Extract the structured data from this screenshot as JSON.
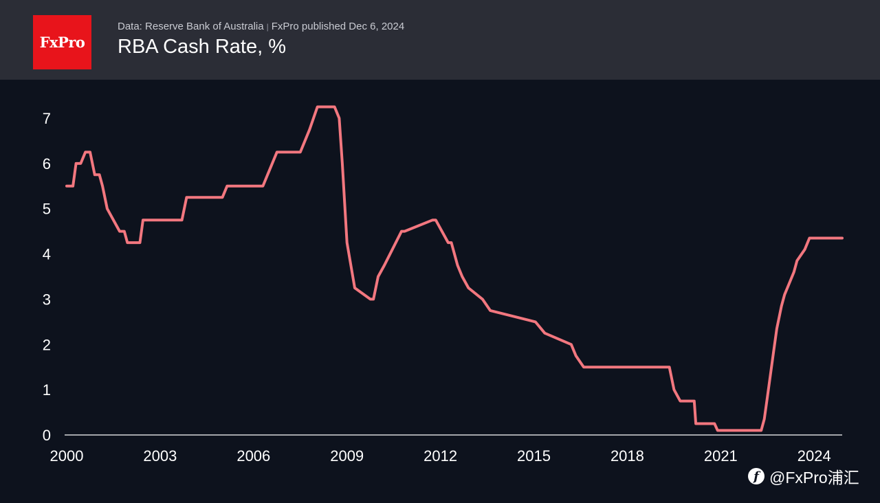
{
  "header": {
    "logo_text": "FxPro",
    "source": "Data: Reserve Bank of Australia",
    "separator": "|",
    "published": "FxPro published Dec 6, 2024",
    "title": "RBA Cash Rate, %"
  },
  "watermark": {
    "icon": "f",
    "text": "@FxPro浦汇"
  },
  "colors": {
    "background": "#0d121d",
    "header": "#2b2d36",
    "line": "#f2777f",
    "axis": "#ffffff",
    "logo": "#e8141b"
  },
  "chart_data": {
    "type": "line",
    "title": "RBA Cash Rate, %",
    "xlabel": "",
    "ylabel": "",
    "xlim": [
      2000.0,
      2024.9
    ],
    "ylim": [
      0,
      7.25
    ],
    "x_ticks": [
      2000,
      2003,
      2006,
      2009,
      2012,
      2015,
      2018,
      2021,
      2024
    ],
    "x_tick_labels": [
      "2000",
      "2003",
      "2006",
      "2009",
      "2012",
      "2015",
      "2018",
      "2021",
      "2024"
    ],
    "y_ticks": [
      0,
      1,
      2,
      3,
      4,
      5,
      6,
      7
    ],
    "y_tick_labels": [
      "0",
      "1",
      "2",
      "3",
      "4",
      "5",
      "6",
      "7"
    ],
    "grid": false,
    "series": [
      {
        "x": [
          2000.0,
          2000.2,
          2000.3,
          2000.45,
          2000.6,
          2000.75,
          2000.9,
          2001.05,
          2001.15,
          2001.3,
          2001.7,
          2001.85,
          2001.95,
          2002.35,
          2002.45,
          2003.7,
          2003.85,
          2005.0,
          2005.15,
          2006.3,
          2006.45,
          2006.6,
          2006.75,
          2007.5,
          2007.65,
          2007.8,
          2008.05,
          2008.6,
          2008.75,
          2008.85,
          2009.0,
          2009.25,
          2009.75,
          2009.85,
          2010.0,
          2010.2,
          2010.75,
          2010.85,
          2011.75,
          2011.85,
          2012.25,
          2012.35,
          2012.55,
          2012.7,
          2012.9,
          2013.35,
          2013.6,
          2015.05,
          2015.35,
          2016.2,
          2016.35,
          2016.6,
          2019.35,
          2019.5,
          2019.7,
          2020.15,
          2020.2,
          2020.8,
          2020.9,
          2022.3,
          2022.4,
          2022.5,
          2022.6,
          2022.7,
          2022.8,
          2022.95,
          2023.05,
          2023.2,
          2023.35,
          2023.45,
          2023.7,
          2023.85,
          2024.9
        ],
        "y": [
          5.5,
          5.5,
          6.0,
          6.0,
          6.25,
          6.25,
          5.75,
          5.75,
          5.5,
          5.0,
          4.5,
          4.5,
          4.25,
          4.25,
          4.75,
          4.75,
          5.25,
          5.25,
          5.5,
          5.5,
          5.75,
          6.0,
          6.25,
          6.25,
          6.5,
          6.75,
          7.25,
          7.25,
          7.0,
          6.0,
          4.25,
          3.25,
          3.0,
          3.0,
          3.5,
          3.75,
          4.5,
          4.5,
          4.75,
          4.75,
          4.25,
          4.25,
          3.75,
          3.5,
          3.25,
          3.0,
          2.75,
          2.5,
          2.25,
          2.0,
          1.75,
          1.5,
          1.5,
          1.0,
          0.75,
          0.75,
          0.25,
          0.25,
          0.1,
          0.1,
          0.35,
          0.85,
          1.35,
          1.85,
          2.35,
          2.85,
          3.1,
          3.35,
          3.6,
          3.85,
          4.1,
          4.35,
          4.35
        ]
      }
    ]
  }
}
